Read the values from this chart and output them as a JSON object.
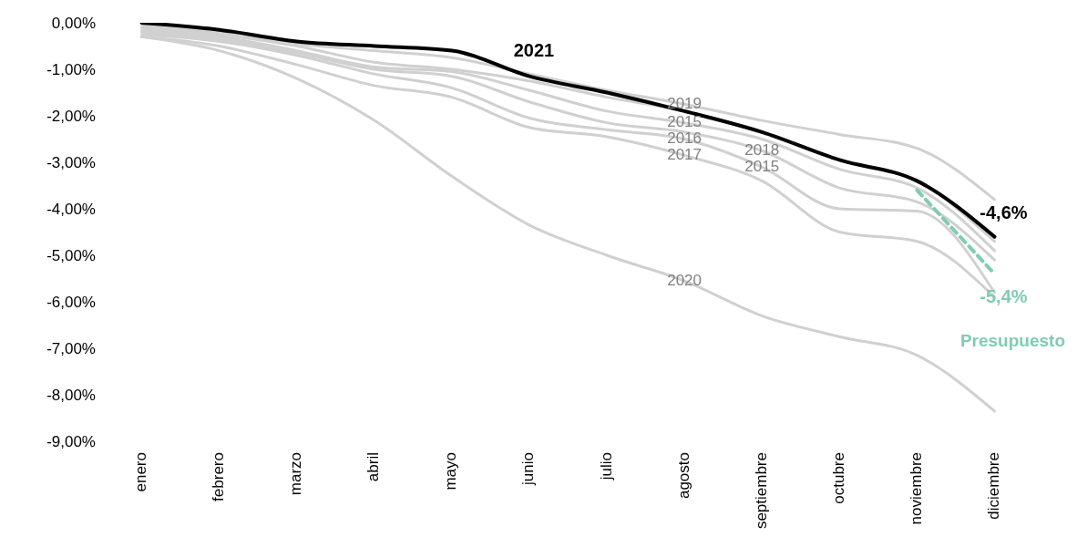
{
  "chart_data": {
    "type": "line",
    "categories": [
      "enero",
      "febrero",
      "marzo",
      "abril",
      "mayo",
      "junio",
      "julio",
      "agosto",
      "septiembre",
      "octubre",
      "noviembre",
      "diciembre"
    ],
    "series": [
      {
        "color": "#d0d0d0",
        "values": [
          -0.05,
          -0.2,
          -0.45,
          -0.6,
          -0.75,
          -1.1,
          -1.45,
          -1.75,
          -2.1,
          -2.4,
          -2.7,
          -3.8
        ]
      },
      {
        "color": "#d0d0d0",
        "values": [
          -0.1,
          -0.25,
          -0.5,
          -0.85,
          -1.0,
          -1.25,
          -1.6,
          -1.9,
          -2.35,
          -2.95,
          -3.4,
          -4.7
        ]
      },
      {
        "color": "#d0d0d0",
        "values": [
          -0.15,
          -0.3,
          -0.6,
          -0.95,
          -1.05,
          -1.45,
          -1.9,
          -2.15,
          -2.5,
          -3.15,
          -3.55,
          -4.9
        ]
      },
      {
        "color": "#d0d0d0",
        "values": [
          -0.2,
          -0.35,
          -0.65,
          -1.0,
          -1.15,
          -1.7,
          -2.15,
          -2.35,
          -2.75,
          -3.55,
          -3.85,
          -5.1
        ]
      },
      {
        "color": "#d0d0d0",
        "values": [
          -0.25,
          -0.4,
          -0.7,
          -1.1,
          -1.4,
          -2.05,
          -2.3,
          -2.5,
          -3.1,
          -4.0,
          -4.05,
          -5.8
        ]
      },
      {
        "color": "#d0d0d0",
        "values": [
          -0.3,
          -0.5,
          -0.9,
          -1.35,
          -1.6,
          -2.25,
          -2.45,
          -2.85,
          -3.4,
          -4.5,
          -4.7,
          -5.9
        ]
      },
      {
        "color": "#d0d0d0",
        "values": [
          -0.3,
          -0.6,
          -1.2,
          -2.1,
          -3.3,
          -4.35,
          -5.0,
          -5.55,
          -6.3,
          -6.75,
          -7.15,
          -8.35
        ]
      },
      {
        "name": "2021",
        "color": "#000000",
        "values": [
          0,
          -0.15,
          -0.4,
          -0.5,
          -0.6,
          -1.15,
          -1.5,
          -1.9,
          -2.35,
          -2.95,
          -3.4,
          -4.6
        ],
        "value_labels": [
          null,
          null,
          null,
          null,
          null,
          null,
          null,
          null,
          null,
          null,
          null,
          "-4,6%"
        ]
      },
      {
        "name": "Presupuesto",
        "color": "#7fcdb0",
        "line_style": "dashed",
        "values": [
          null,
          null,
          null,
          null,
          null,
          null,
          null,
          null,
          null,
          null,
          -3.6,
          -5.4
        ],
        "value_labels": [
          null,
          null,
          null,
          null,
          null,
          null,
          null,
          null,
          null,
          null,
          null,
          "-5,4%"
        ]
      }
    ],
    "ylim": [
      -9,
      0
    ],
    "yticks": [
      {
        "value": 0,
        "label": "0,00%"
      },
      {
        "value": -1,
        "label": "-1,00%"
      },
      {
        "value": -2,
        "label": "-2,00%"
      },
      {
        "value": -3,
        "label": "-3,00%"
      },
      {
        "value": -4,
        "label": "-4,00%"
      },
      {
        "value": -5,
        "label": "-5,00%"
      },
      {
        "value": -6,
        "label": "-6,00%"
      },
      {
        "value": -7,
        "label": "-7,00%"
      },
      {
        "value": -8,
        "label": "-8,00%"
      },
      {
        "value": -9,
        "label": "-9,00%"
      }
    ],
    "annotations": [
      {
        "text": "2019",
        "x": "agosto",
        "y": -1.75
      },
      {
        "text": "2015",
        "x": "agosto",
        "y": -2.15
      },
      {
        "text": "2016",
        "x": "agosto",
        "y": -2.5
      },
      {
        "text": "2017",
        "x": "agosto",
        "y": -2.85
      },
      {
        "text": "2018",
        "x": "septiembre",
        "y": -2.75
      },
      {
        "text": "2015",
        "x": "septiembre",
        "y": -3.1
      },
      {
        "text": "2020",
        "x": "agosto",
        "y": -5.55
      }
    ],
    "grid": false,
    "legend": false,
    "marker": "none"
  }
}
